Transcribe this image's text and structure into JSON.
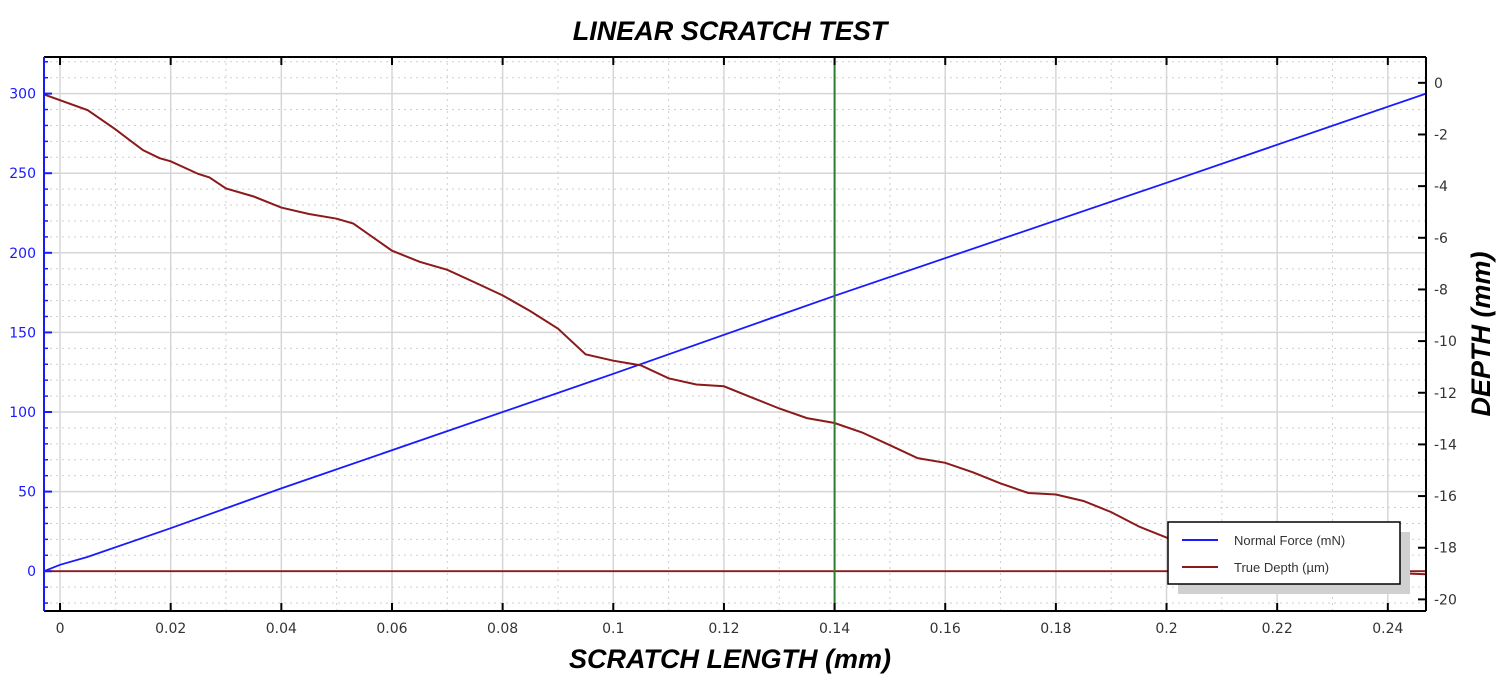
{
  "chart_data": {
    "type": "line",
    "title": "LINEAR SCRATCH TEST",
    "xlabel": "SCRATCH LENGTH (mm)",
    "ylabel": "",
    "y2label": "DEPTH (mm)",
    "xlim": [
      -0.0029,
      0.2469
    ],
    "ylim": [
      -25,
      323
    ],
    "y2lim": [
      -20.45,
      1.0
    ],
    "grid": true,
    "legend_position": "bottom-right",
    "xticks": [
      "0",
      "0.02",
      "0.04",
      "0.06",
      "0.08",
      "0.1",
      "0.12",
      "0.14",
      "0.16",
      "0.18",
      "0.2",
      "0.22",
      "0.24"
    ],
    "yticks": [
      "0",
      "50",
      "100",
      "150",
      "200",
      "250",
      "300"
    ],
    "y2ticks": [
      "0",
      "-2",
      "-4",
      "-6",
      "-8",
      "-10",
      "-12",
      "-14",
      "-16",
      "-18",
      "-20"
    ],
    "marker_x": 0.14,
    "colors": {
      "force": "#1a1aff",
      "depth": "#8b1a1a",
      "marker": "#2e7d32",
      "left_axis": "#1a1aff"
    },
    "series": [
      {
        "name": "Normal Force (mN)",
        "axis": "left",
        "x": [
          -0.0029,
          0,
          0.005,
          0.02,
          0.04,
          0.1,
          0.14,
          0.2,
          0.2469
        ],
        "values": [
          0,
          4,
          9,
          27,
          52,
          124,
          173,
          244,
          300
        ]
      },
      {
        "name": "True Depth (µm)",
        "axis": "right",
        "x": [
          -0.0029,
          0.005,
          0.01,
          0.015,
          0.018,
          0.02,
          0.025,
          0.027,
          0.03,
          0.035,
          0.04,
          0.045,
          0.05,
          0.053,
          0.06,
          0.065,
          0.07,
          0.075,
          0.08,
          0.085,
          0.09,
          0.095,
          0.1,
          0.105,
          0.11,
          0.115,
          0.12,
          0.125,
          0.13,
          0.135,
          0.14,
          0.145,
          0.15,
          0.155,
          0.16,
          0.165,
          0.17,
          0.175,
          0.18,
          0.185,
          0.19,
          0.195,
          0.2,
          0.21,
          0.22,
          0.23,
          0.24,
          0.2469
        ],
        "values": [
          -0.45,
          -1.06,
          -1.8,
          -2.61,
          -2.92,
          -3.04,
          -3.53,
          -3.66,
          -4.09,
          -4.4,
          -4.83,
          -5.08,
          -5.26,
          -5.45,
          -6.5,
          -6.93,
          -7.24,
          -7.73,
          -8.23,
          -8.84,
          -9.52,
          -10.51,
          -10.76,
          -10.94,
          -11.44,
          -11.68,
          -11.75,
          -12.18,
          -12.61,
          -12.98,
          -13.17,
          -13.54,
          -14.03,
          -14.53,
          -14.71,
          -15.08,
          -15.51,
          -15.88,
          -15.94,
          -16.19,
          -16.62,
          -17.18,
          -17.61,
          -18.23,
          -18.66,
          -18.85,
          -18.97,
          -19.03
        ]
      },
      {
        "name": "",
        "axis": "left",
        "x": [
          -0.0029,
          0.2469
        ],
        "values": [
          0,
          0
        ]
      }
    ]
  }
}
